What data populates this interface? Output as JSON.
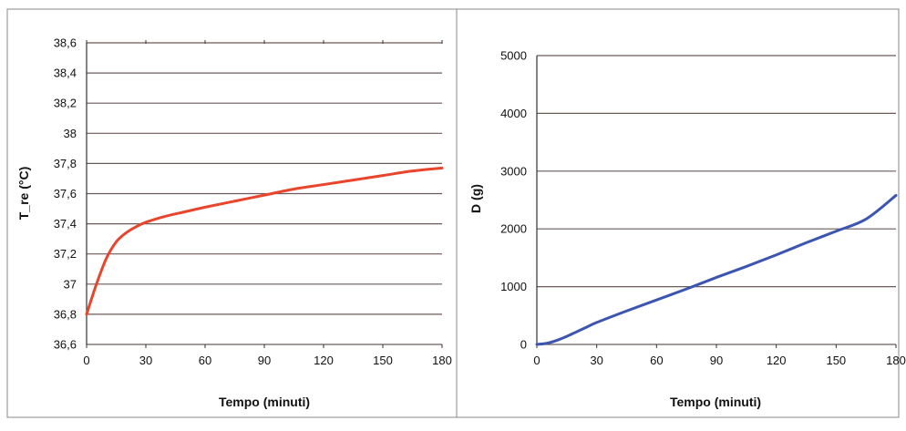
{
  "chart_data": [
    {
      "type": "line",
      "title": "",
      "xlabel": "Tempo (minuti)",
      "ylabel": "T_re (°C)",
      "xlim": [
        0,
        180
      ],
      "ylim": [
        36.6,
        38.6
      ],
      "x_ticks": [
        "0",
        "30",
        "60",
        "90",
        "120",
        "150",
        "180"
      ],
      "y_ticks": [
        "36,6",
        "36,8",
        "37",
        "37,2",
        "37,4",
        "37,6",
        "37,8",
        "38",
        "38,2",
        "38,4",
        "38,6"
      ],
      "grid": "horizontal",
      "color": "#e8452c",
      "series": [
        {
          "x": [
            0,
            5,
            10,
            15,
            20,
            25,
            30,
            40,
            50,
            60,
            75,
            90,
            105,
            120,
            135,
            150,
            165,
            180
          ],
          "y": [
            36.8,
            37.0,
            37.17,
            37.28,
            37.34,
            37.38,
            37.41,
            37.45,
            37.48,
            37.51,
            37.55,
            37.59,
            37.63,
            37.66,
            37.69,
            37.72,
            37.75,
            37.77
          ]
        }
      ]
    },
    {
      "type": "line",
      "title": "",
      "xlabel": "Tempo (minuti)",
      "ylabel": "D (g)",
      "xlim": [
        0,
        180
      ],
      "ylim": [
        0,
        5000
      ],
      "x_ticks": [
        "0",
        "30",
        "60",
        "90",
        "120",
        "150",
        "180"
      ],
      "y_ticks": [
        "0",
        "1000",
        "2000",
        "3000",
        "4000",
        "5000"
      ],
      "grid": "horizontal",
      "color": "#3b55b0",
      "series": [
        {
          "x": [
            0,
            5,
            10,
            15,
            20,
            25,
            30,
            45,
            60,
            75,
            90,
            105,
            120,
            135,
            150,
            165,
            180
          ],
          "y": [
            0,
            20,
            70,
            140,
            220,
            300,
            380,
            580,
            770,
            960,
            1160,
            1350,
            1550,
            1760,
            1960,
            2170,
            2580
          ]
        }
      ]
    }
  ]
}
